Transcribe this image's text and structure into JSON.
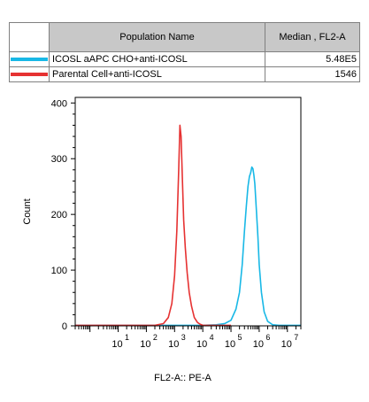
{
  "legend": {
    "header_name": "Population Name",
    "header_value": "Median , FL2-A",
    "rows": [
      {
        "name": "ICOSL aAPC CHO+anti-ICOSL",
        "value": "5.48E5",
        "color": "#18b8e6"
      },
      {
        "name": "Parental Cell+anti-ICOSL",
        "value": "1546",
        "color": "#e63232"
      }
    ]
  },
  "chart_data": {
    "type": "line",
    "title": "",
    "xlabel": "FL2-A:: PE-A",
    "ylabel": "Count",
    "xscale": "log",
    "xlim": [
      0.3,
      30000000
    ],
    "ylim": [
      0,
      410
    ],
    "x_ticks": [
      {
        "value": 10,
        "base": "10",
        "exp": "1"
      },
      {
        "value": 100,
        "base": "10",
        "exp": "2"
      },
      {
        "value": 1000,
        "base": "10",
        "exp": "3"
      },
      {
        "value": 10000,
        "base": "10",
        "exp": "4"
      },
      {
        "value": 100000,
        "base": "10",
        "exp": "5"
      },
      {
        "value": 1000000,
        "base": "10",
        "exp": "6"
      },
      {
        "value": 10000000,
        "base": "10",
        "exp": "7"
      }
    ],
    "y_ticks": [
      0,
      100,
      200,
      300,
      400
    ],
    "series": [
      {
        "name": "ICOSL aAPC CHO+anti-ICOSL",
        "color": "#18b8e6",
        "x": [
          0.3,
          1000,
          10000,
          30000,
          60000,
          100000,
          150000,
          200000,
          250000,
          300000,
          350000,
          400000,
          450000,
          500000,
          548000,
          600000,
          650000,
          700000,
          800000,
          900000,
          1000000,
          1200000,
          1500000,
          2000000,
          3000000,
          5000000,
          30000000
        ],
        "y": [
          1,
          1,
          1,
          2,
          4,
          10,
          30,
          60,
          110,
          170,
          215,
          250,
          268,
          275,
          285,
          282,
          270,
          255,
          205,
          160,
          110,
          60,
          25,
          8,
          2,
          1,
          1
        ]
      },
      {
        "name": "Parental Cell+anti-ICOSL",
        "color": "#e63232",
        "x": [
          0.3,
          200,
          400,
          600,
          800,
          1000,
          1200,
          1400,
          1546,
          1700,
          1900,
          2100,
          2400,
          2800,
          3300,
          4000,
          5000,
          6500,
          8000,
          10000,
          15000,
          100000
        ],
        "y": [
          1,
          1,
          4,
          15,
          40,
          90,
          170,
          280,
          360,
          340,
          260,
          190,
          140,
          95,
          60,
          35,
          15,
          6,
          3,
          1,
          1,
          1
        ]
      }
    ]
  }
}
